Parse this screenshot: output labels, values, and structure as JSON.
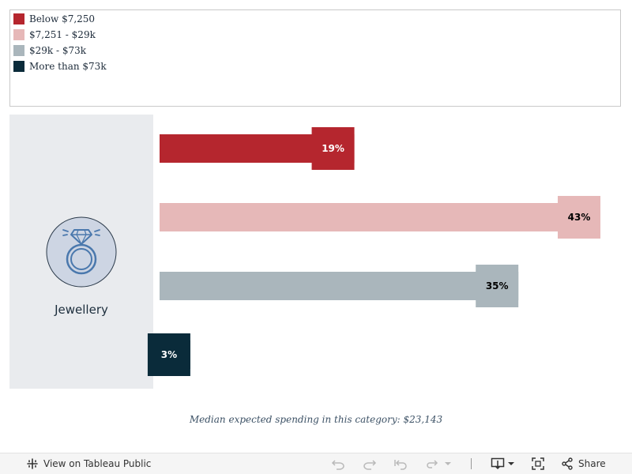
{
  "legend": {
    "items": [
      {
        "label": "Below $7,250",
        "color": "#b5262e"
      },
      {
        "label": "$7,251 - $29k",
        "color": "#e6b8b8"
      },
      {
        "label": "$29k - $73k",
        "color": "#aab6bc"
      },
      {
        "label": "More than $73k",
        "color": "#0a2b3a"
      }
    ]
  },
  "category": {
    "label": "Jewellery",
    "icon": "diamond-ring-icon"
  },
  "chart_data": {
    "type": "bar",
    "orientation": "horizontal",
    "categories": [
      "Below $7,250",
      "$7,251 - $29k",
      "$29k - $73k",
      "More than $73k"
    ],
    "values": [
      19,
      43,
      35,
      3
    ],
    "value_labels": [
      "19%",
      "43%",
      "35%",
      "3%"
    ],
    "colors": [
      "#b5262e",
      "#e6b8b8",
      "#aab6bc",
      "#0a2b3a"
    ],
    "label_colors": [
      "#ffffff",
      "#000000",
      "#000000",
      "#ffffff"
    ],
    "xlim": [
      0,
      43
    ],
    "grid": false,
    "legend": "top"
  },
  "footnote": "Median expected spending in this category: $23,143",
  "toolbar": {
    "view_label": "View on Tableau Public",
    "share_label": "Share"
  }
}
